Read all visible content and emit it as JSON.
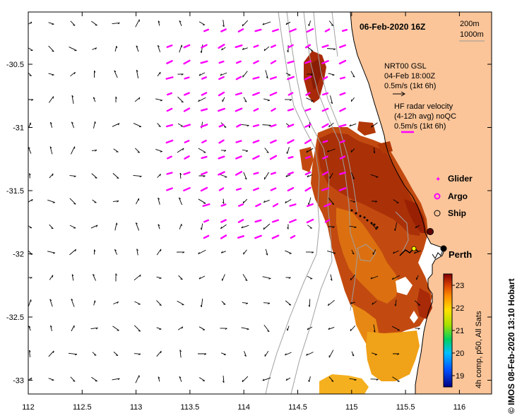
{
  "map": {
    "title": "06-Feb-2020 16Z",
    "depth_labels": [
      "200m",
      "1000m"
    ],
    "x_ticks": [
      "112",
      "112.5",
      "113",
      "113.5",
      "114",
      "114.5",
      "115",
      "115.5",
      "116"
    ],
    "y_ticks": [
      "-30.5",
      "-31",
      "-31.5",
      "-32",
      "-32.5",
      "-33"
    ],
    "lon_range": [
      112,
      116.3
    ],
    "lat_range": [
      -33.1,
      -30.1
    ]
  },
  "legend": {
    "gsl_lines": [
      "NRT00 GSL",
      "04-Feb 18:00Z",
      "0.5m/s (1kt 6h)"
    ],
    "radar_lines": [
      "HF radar velocity",
      "(4-12h avg) noQC",
      "0.5m/s (1kt 6h)"
    ],
    "glider": "Glider",
    "argo": "Argo",
    "ship": "Ship",
    "magenta_color": "#ff00ff"
  },
  "city": {
    "name": "Perth"
  },
  "colorbar": {
    "ticks": [
      "23",
      "22",
      "21",
      "20",
      "19"
    ],
    "caption": "4h comp, p50, All Sats"
  },
  "credit": "© IMOS 08-Feb-2020 13:10 Hobart"
}
